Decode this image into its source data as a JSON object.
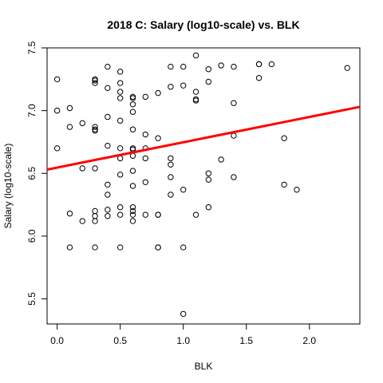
{
  "chart_data": {
    "type": "scatter",
    "title": "2018 C: Salary (log10-scale) vs. BLK",
    "xlabel": "BLK",
    "ylabel": "Salary (log10-scale)",
    "xlim": [
      -0.08,
      2.4
    ],
    "ylim": [
      5.3,
      7.5
    ],
    "x_ticks": [
      0.0,
      0.5,
      1.0,
      1.5,
      2.0
    ],
    "x_tick_labels": [
      "0.0",
      "0.5",
      "1.0",
      "1.5",
      "2.0"
    ],
    "y_ticks": [
      5.5,
      6.0,
      6.5,
      7.0,
      7.5
    ],
    "y_tick_labels": [
      "5.5",
      "6.0",
      "6.5",
      "7.0",
      "7.5"
    ],
    "grid": false,
    "legend": "none",
    "point_color": "#000000",
    "fit_line": {
      "color": "#ff0000",
      "x": [
        -0.08,
        2.4
      ],
      "y": [
        6.53,
        7.03
      ]
    },
    "points": [
      {
        "x": 0.0,
        "y": 7.25
      },
      {
        "x": 0.0,
        "y": 7.0
      },
      {
        "x": 0.0,
        "y": 6.7
      },
      {
        "x": 0.1,
        "y": 7.02
      },
      {
        "x": 0.1,
        "y": 6.87
      },
      {
        "x": 0.1,
        "y": 6.18
      },
      {
        "x": 0.1,
        "y": 5.91
      },
      {
        "x": 0.2,
        "y": 6.9
      },
      {
        "x": 0.2,
        "y": 6.54
      },
      {
        "x": 0.2,
        "y": 6.12
      },
      {
        "x": 0.3,
        "y": 7.25
      },
      {
        "x": 0.3,
        "y": 7.24
      },
      {
        "x": 0.3,
        "y": 7.22
      },
      {
        "x": 0.3,
        "y": 6.87
      },
      {
        "x": 0.3,
        "y": 6.85
      },
      {
        "x": 0.3,
        "y": 6.84
      },
      {
        "x": 0.3,
        "y": 6.54
      },
      {
        "x": 0.3,
        "y": 6.2
      },
      {
        "x": 0.3,
        "y": 6.16
      },
      {
        "x": 0.3,
        "y": 6.12
      },
      {
        "x": 0.3,
        "y": 5.91
      },
      {
        "x": 0.4,
        "y": 7.35
      },
      {
        "x": 0.4,
        "y": 7.18
      },
      {
        "x": 0.4,
        "y": 6.95
      },
      {
        "x": 0.4,
        "y": 6.72
      },
      {
        "x": 0.4,
        "y": 6.41
      },
      {
        "x": 0.4,
        "y": 6.33
      },
      {
        "x": 0.4,
        "y": 6.21
      },
      {
        "x": 0.4,
        "y": 6.16
      },
      {
        "x": 0.5,
        "y": 7.31
      },
      {
        "x": 0.5,
        "y": 7.22
      },
      {
        "x": 0.5,
        "y": 7.15
      },
      {
        "x": 0.5,
        "y": 7.1
      },
      {
        "x": 0.5,
        "y": 6.92
      },
      {
        "x": 0.5,
        "y": 6.7
      },
      {
        "x": 0.5,
        "y": 6.62
      },
      {
        "x": 0.5,
        "y": 6.49
      },
      {
        "x": 0.5,
        "y": 6.23
      },
      {
        "x": 0.5,
        "y": 6.17
      },
      {
        "x": 0.5,
        "y": 5.91
      },
      {
        "x": 0.6,
        "y": 7.11
      },
      {
        "x": 0.6,
        "y": 7.1
      },
      {
        "x": 0.6,
        "y": 7.05
      },
      {
        "x": 0.6,
        "y": 6.99
      },
      {
        "x": 0.6,
        "y": 6.85
      },
      {
        "x": 0.6,
        "y": 6.7
      },
      {
        "x": 0.6,
        "y": 6.69
      },
      {
        "x": 0.6,
        "y": 6.64
      },
      {
        "x": 0.6,
        "y": 6.52
      },
      {
        "x": 0.6,
        "y": 6.4
      },
      {
        "x": 0.6,
        "y": 6.23
      },
      {
        "x": 0.6,
        "y": 6.2
      },
      {
        "x": 0.6,
        "y": 6.17
      },
      {
        "x": 0.6,
        "y": 6.12
      },
      {
        "x": 0.7,
        "y": 7.11
      },
      {
        "x": 0.7,
        "y": 6.81
      },
      {
        "x": 0.7,
        "y": 6.7
      },
      {
        "x": 0.7,
        "y": 6.62
      },
      {
        "x": 0.7,
        "y": 6.43
      },
      {
        "x": 0.7,
        "y": 6.17
      },
      {
        "x": 0.8,
        "y": 7.14
      },
      {
        "x": 0.8,
        "y": 6.78
      },
      {
        "x": 0.8,
        "y": 6.17
      },
      {
        "x": 0.8,
        "y": 6.17
      },
      {
        "x": 0.8,
        "y": 5.91
      },
      {
        "x": 0.8,
        "y": 5.91
      },
      {
        "x": 0.9,
        "y": 7.35
      },
      {
        "x": 0.9,
        "y": 7.19
      },
      {
        "x": 0.9,
        "y": 6.62
      },
      {
        "x": 0.9,
        "y": 6.57
      },
      {
        "x": 0.9,
        "y": 6.47
      },
      {
        "x": 0.9,
        "y": 6.33
      },
      {
        "x": 1.0,
        "y": 7.35
      },
      {
        "x": 1.0,
        "y": 7.2
      },
      {
        "x": 1.0,
        "y": 6.37
      },
      {
        "x": 1.0,
        "y": 5.91
      },
      {
        "x": 1.0,
        "y": 5.38
      },
      {
        "x": 1.1,
        "y": 7.44
      },
      {
        "x": 1.1,
        "y": 7.15
      },
      {
        "x": 1.1,
        "y": 7.09
      },
      {
        "x": 1.1,
        "y": 7.08
      },
      {
        "x": 1.1,
        "y": 6.17
      },
      {
        "x": 1.2,
        "y": 7.33
      },
      {
        "x": 1.2,
        "y": 7.23
      },
      {
        "x": 1.2,
        "y": 6.5
      },
      {
        "x": 1.2,
        "y": 6.45
      },
      {
        "x": 1.2,
        "y": 6.23
      },
      {
        "x": 1.3,
        "y": 7.36
      },
      {
        "x": 1.3,
        "y": 6.61
      },
      {
        "x": 1.4,
        "y": 7.35
      },
      {
        "x": 1.4,
        "y": 7.06
      },
      {
        "x": 1.4,
        "y": 6.8
      },
      {
        "x": 1.4,
        "y": 6.47
      },
      {
        "x": 1.6,
        "y": 7.37
      },
      {
        "x": 1.6,
        "y": 7.37
      },
      {
        "x": 1.6,
        "y": 7.26
      },
      {
        "x": 1.7,
        "y": 7.37
      },
      {
        "x": 1.8,
        "y": 6.78
      },
      {
        "x": 1.8,
        "y": 6.41
      },
      {
        "x": 1.9,
        "y": 6.37
      },
      {
        "x": 2.3,
        "y": 7.34
      }
    ]
  }
}
